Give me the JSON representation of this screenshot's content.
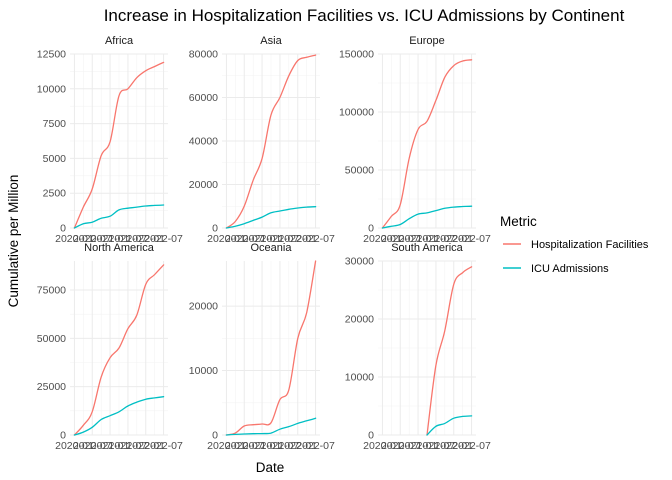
{
  "chart_data": {
    "type": "line",
    "title": "Increase in Hospitalization Facilities vs. ICU Admissions by Continent",
    "xlabel": "Date",
    "ylabel": "Cumulative per Million",
    "legend": {
      "title": "Metric",
      "position": "right",
      "entries": [
        "Hospitalization Facilities",
        "ICU Admissions"
      ]
    },
    "series_colors": {
      "Hospitalization Facilities": "#F8766D",
      "ICU Admissions": "#00BFC4"
    },
    "x": [
      "2020-01",
      "2020-04",
      "2020-07",
      "2020-10",
      "2021-01",
      "2021-04",
      "2021-07",
      "2021-10",
      "2022-01",
      "2022-04",
      "2022-07"
    ],
    "x_tick_labels": [
      "2020-01",
      "2020-07",
      "2021-01",
      "2021-07",
      "2022-01",
      "2022-07"
    ],
    "grid": true,
    "facets": [
      {
        "panel": "Africa",
        "ylim": [
          0,
          12500
        ],
        "y_ticks": [
          0,
          2500,
          5000,
          7500,
          10000,
          12500
        ],
        "y_tick_labels": [
          "0",
          "2500",
          "5000",
          "7500",
          "10000",
          "12500"
        ],
        "series": [
          {
            "name": "Hospitalization Facilities",
            "values": [
              0,
              1500,
              2800,
              5200,
              6200,
              9500,
              10000,
              10800,
              11300,
              11600,
              11900
            ]
          },
          {
            "name": "ICU Admissions",
            "values": [
              0,
              300,
              420,
              700,
              850,
              1300,
              1420,
              1500,
              1580,
              1620,
              1650
            ]
          }
        ]
      },
      {
        "panel": "Asia",
        "ylim": [
          0,
          80000
        ],
        "y_ticks": [
          0,
          20000,
          40000,
          60000,
          80000
        ],
        "y_tick_labels": [
          "0",
          "20000",
          "40000",
          "60000",
          "80000"
        ],
        "series": [
          {
            "name": "Hospitalization Facilities",
            "values": [
              0,
              3000,
              10000,
              22000,
              32000,
              52000,
              60000,
              70000,
              77000,
              78500,
              79500
            ]
          },
          {
            "name": "ICU Admissions",
            "values": [
              0,
              800,
              2000,
              3500,
              5000,
              7000,
              7800,
              8600,
              9200,
              9600,
              9800
            ]
          }
        ]
      },
      {
        "panel": "Europe",
        "ylim": [
          0,
          150000
        ],
        "y_ticks": [
          0,
          50000,
          100000,
          150000
        ],
        "y_tick_labels": [
          "0",
          "50000",
          "100000",
          "150000"
        ],
        "series": [
          {
            "name": "Hospitalization Facilities",
            "values": [
              0,
              10000,
              20000,
              60000,
              85000,
              92000,
              110000,
              130000,
              140000,
              144000,
              145000
            ]
          },
          {
            "name": "ICU Admissions",
            "values": [
              0,
              1500,
              3000,
              8000,
              12000,
              13000,
              15000,
              17000,
              18000,
              18500,
              18800
            ]
          }
        ]
      },
      {
        "panel": "North America",
        "ylim": [
          0,
          90000
        ],
        "y_ticks": [
          0,
          25000,
          50000,
          75000
        ],
        "y_tick_labels": [
          "0",
          "25000",
          "50000",
          "75000"
        ],
        "series": [
          {
            "name": "Hospitalization Facilities",
            "values": [
              0,
              5000,
              12000,
              30000,
              40000,
              45000,
              55000,
              62000,
              78000,
              83000,
              88000
            ]
          },
          {
            "name": "ICU Admissions",
            "values": [
              0,
              1500,
              4000,
              8000,
              10000,
              12000,
              15000,
              17000,
              18500,
              19200,
              19800
            ]
          }
        ]
      },
      {
        "panel": "Oceania",
        "ylim": [
          0,
          27000
        ],
        "y_ticks": [
          0,
          10000,
          20000
        ],
        "y_tick_labels": [
          "0",
          "10000",
          "20000"
        ],
        "series": [
          {
            "name": "Hospitalization Facilities",
            "values": [
              0,
              300,
              1400,
              1600,
              1700,
              1900,
              5500,
              7000,
              15000,
              19000,
              27000
            ]
          },
          {
            "name": "ICU Admissions",
            "values": [
              0,
              100,
              150,
              200,
              220,
              300,
              900,
              1300,
              1800,
              2200,
              2600
            ]
          }
        ]
      },
      {
        "panel": "South America",
        "ylim": [
          0,
          30000
        ],
        "y_ticks": [
          0,
          10000,
          20000,
          30000
        ],
        "y_tick_labels": [
          "0",
          "10000",
          "20000",
          "30000"
        ],
        "series": [
          {
            "name": "Hospitalization Facilities",
            "values": [
              null,
              null,
              null,
              null,
              null,
              0,
              12000,
              18000,
              26000,
              28000,
              29000
            ]
          },
          {
            "name": "ICU Admissions",
            "values": [
              null,
              null,
              null,
              null,
              null,
              0,
              1500,
              2000,
              2900,
              3200,
              3300
            ]
          }
        ]
      }
    ]
  }
}
